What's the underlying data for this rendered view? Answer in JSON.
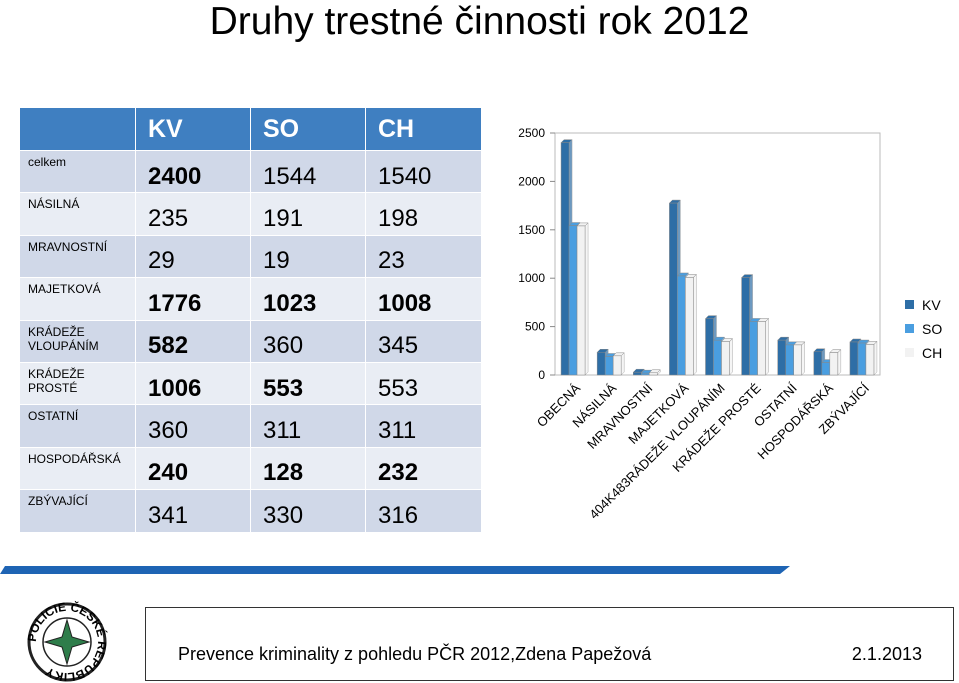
{
  "header": {
    "title": "Druhy trestné činnosti rok 2012"
  },
  "table": {
    "columns": [
      "KV",
      "SO",
      "CH"
    ],
    "rows": [
      {
        "label": "celkem",
        "values": [
          2400,
          1544,
          1540
        ],
        "bold": [
          true,
          false,
          false
        ]
      },
      {
        "label": "NÁSILNÁ",
        "values": [
          235,
          191,
          198
        ],
        "bold": [
          false,
          false,
          false
        ]
      },
      {
        "label": "MRAVNOSTNÍ",
        "values": [
          29,
          19,
          23
        ],
        "bold": [
          false,
          false,
          false
        ]
      },
      {
        "label": "MAJETKOVÁ",
        "values": [
          1776,
          1023,
          1008
        ],
        "bold": [
          true,
          true,
          true
        ]
      },
      {
        "label": "KRÁDEŽE VLOUPÁNÍM",
        "values": [
          582,
          360,
          345
        ],
        "bold": [
          true,
          false,
          false
        ]
      },
      {
        "label": "KRÁDEŽE PROSTÉ",
        "values": [
          1006,
          553,
          553
        ],
        "bold": [
          true,
          true,
          false
        ]
      },
      {
        "label": "OSTATNÍ",
        "values": [
          360,
          311,
          311
        ],
        "bold": [
          false,
          false,
          false
        ]
      },
      {
        "label": "HOSPODÁŘSKÁ",
        "values": [
          240,
          128,
          232
        ],
        "bold": [
          true,
          true,
          true
        ]
      },
      {
        "label": "ZBÝVAJÍCÍ",
        "values": [
          341,
          330,
          316
        ],
        "bold": [
          false,
          false,
          false
        ]
      }
    ]
  },
  "chart_data": {
    "type": "bar",
    "categories": [
      "OBECNÁ",
      "NÁSILNÁ",
      "MRAVNOSTNÍ",
      "MAJETKOVÁ",
      "404K483RÁDEŽE VLOUPÁNÍM",
      "KRÁDEŽE PROSTÉ",
      "OSTATNÍ",
      "HOSPODÁŘSKÁ",
      "ZBÝVAJÍCÍ"
    ],
    "series": [
      {
        "name": "KV",
        "color": "#2e6ea6",
        "values": [
          2400,
          235,
          29,
          1776,
          582,
          1006,
          360,
          240,
          341
        ]
      },
      {
        "name": "SO",
        "color": "#4a9ee0",
        "values": [
          1544,
          191,
          19,
          1023,
          360,
          553,
          311,
          128,
          330
        ]
      },
      {
        "name": "CH",
        "color": "#f2f2f2",
        "values": [
          1540,
          198,
          23,
          1008,
          345,
          553,
          311,
          232,
          316
        ]
      }
    ],
    "ylim": [
      0,
      2500
    ],
    "yticks": [
      0,
      500,
      1000,
      1500,
      2000,
      2500
    ],
    "legend": "right"
  },
  "footer": {
    "logo_text": "POLICIE ČESKÉ REPUBLIKY",
    "text": "Prevence kriminality z pohledu PČR 2012,Zdena Papežová",
    "date": "2.1.2013"
  }
}
